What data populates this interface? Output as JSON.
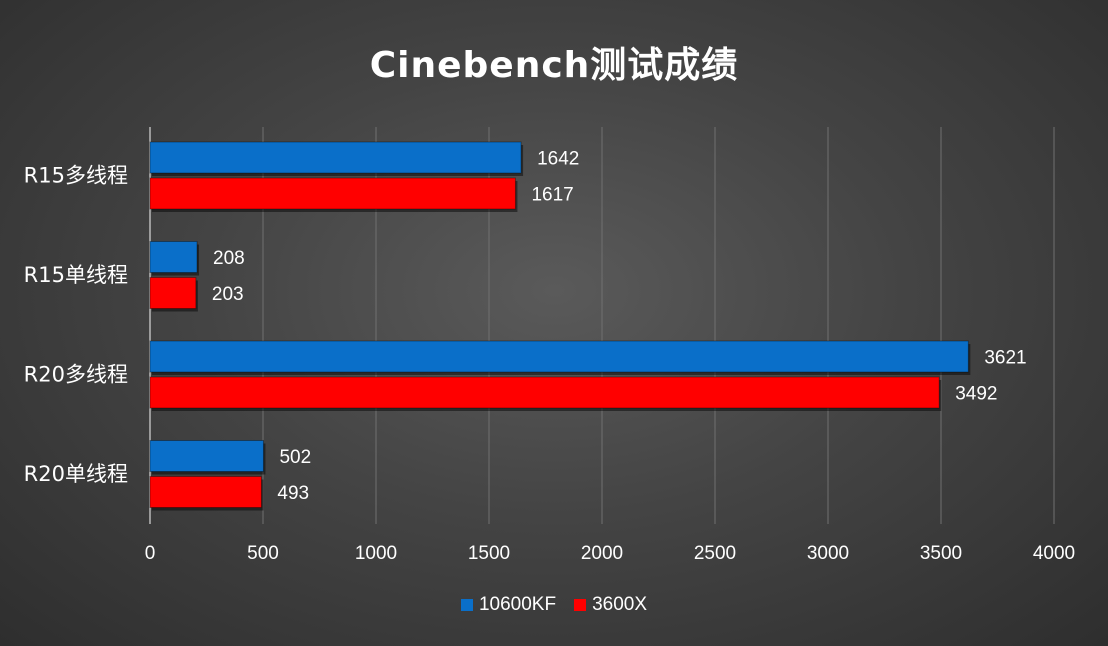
{
  "chart_data": {
    "type": "bar",
    "orientation": "horizontal",
    "title": "Cinebench测试成绩",
    "categories": [
      "R15多线程",
      "R15单线程",
      "R20多线程",
      "R20单线程"
    ],
    "series": [
      {
        "name": "10600KF",
        "color": "#0a6fc9",
        "values": [
          1642,
          208,
          3621,
          502
        ]
      },
      {
        "name": "3600X",
        "color": "#ff0000",
        "values": [
          1617,
          203,
          3492,
          493
        ]
      }
    ],
    "xlim": [
      0,
      4000
    ],
    "xticks": [
      0,
      500,
      1000,
      1500,
      2000,
      2500,
      3000,
      3500,
      4000
    ],
    "grid": true,
    "legend_position": "bottom"
  }
}
